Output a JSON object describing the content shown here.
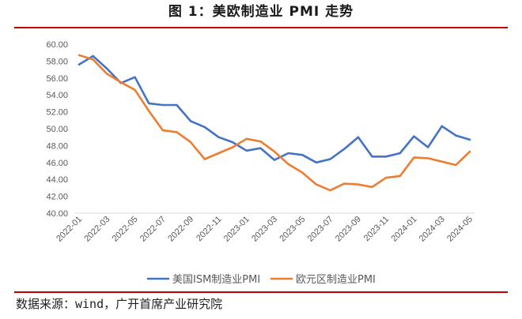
{
  "title": "图 1：美欧制造业 PMI 走势",
  "source": "数据来源：wind，广开首席产业研究院",
  "colors": {
    "us": "#4472c4",
    "eu": "#ed7d31",
    "rule": "#c00000",
    "axis": "#d9d9d9",
    "text": "#595959"
  },
  "chart_data": {
    "type": "line",
    "title": "",
    "xlabel": "",
    "ylabel": "",
    "ylim": [
      40,
      60
    ],
    "yticks": [
      "60.00",
      "58.00",
      "56.00",
      "54.00",
      "52.00",
      "50.00",
      "48.00",
      "46.00",
      "44.00",
      "42.00",
      "40.00"
    ],
    "x": [
      "2022-01",
      "2022-02",
      "2022-03",
      "2022-04",
      "2022-05",
      "2022-06",
      "2022-07",
      "2022-08",
      "2022-09",
      "2022-10",
      "2022-11",
      "2022-12",
      "2023-01",
      "2023-02",
      "2023-03",
      "2023-04",
      "2023-05",
      "2023-06",
      "2023-07",
      "2023-08",
      "2023-09",
      "2023-10",
      "2023-11",
      "2023-12",
      "2024-01",
      "2024-02",
      "2024-03",
      "2024-04",
      "2024-05"
    ],
    "xtick_labels": [
      "2022-01",
      "2022-03",
      "2022-05",
      "2022-07",
      "2022-09",
      "2022-11",
      "2023-01",
      "2023-03",
      "2023-05",
      "2023-07",
      "2023-09",
      "2023-11",
      "2024-01",
      "2024-03",
      "2024-05"
    ],
    "legend_position": "bottom",
    "grid": false,
    "series": [
      {
        "name": "美国ISM制造业PMI",
        "values": [
          57.6,
          58.6,
          57.1,
          55.4,
          56.1,
          53.0,
          52.8,
          52.8,
          50.9,
          50.2,
          49.0,
          48.4,
          47.4,
          47.7,
          46.3,
          47.1,
          46.9,
          46.0,
          46.4,
          47.6,
          49.0,
          46.7,
          46.7,
          47.1,
          49.1,
          47.8,
          50.3,
          49.2,
          48.7
        ]
      },
      {
        "name": "欧元区制造业PMI",
        "values": [
          58.7,
          58.2,
          56.5,
          55.5,
          54.6,
          52.1,
          49.8,
          49.6,
          48.4,
          46.4,
          47.1,
          47.8,
          48.8,
          48.5,
          47.3,
          45.8,
          44.8,
          43.4,
          42.7,
          43.5,
          43.4,
          43.1,
          44.2,
          44.4,
          46.6,
          46.5,
          46.1,
          45.7,
          47.3
        ]
      }
    ]
  }
}
